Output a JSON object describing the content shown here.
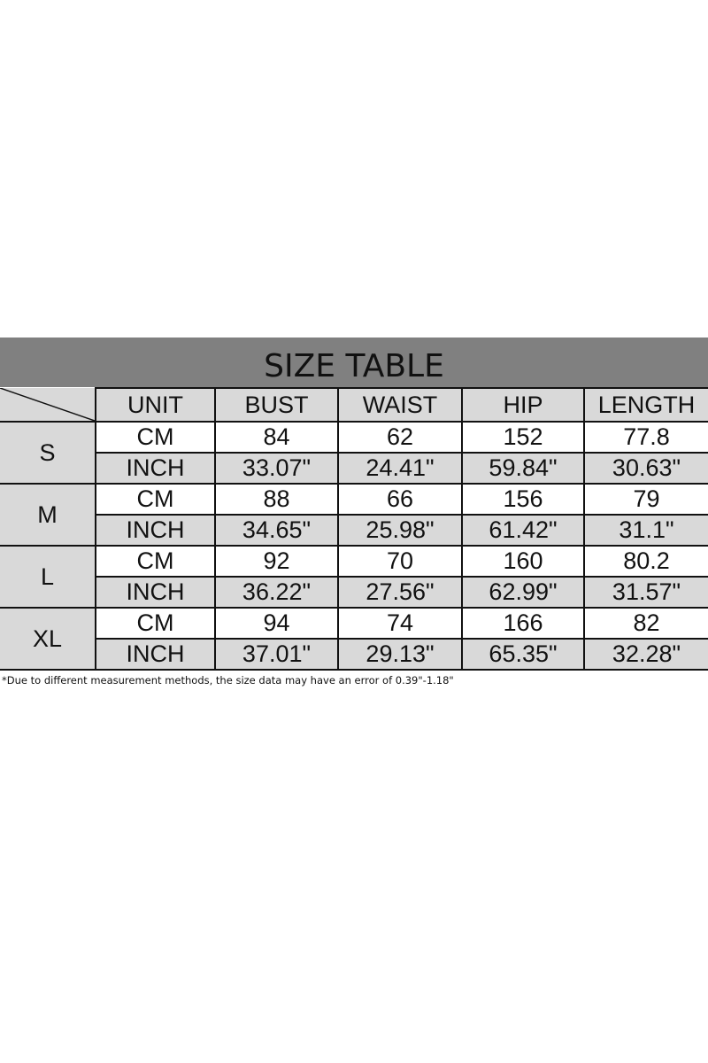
{
  "title": "SIZE TABLE",
  "columns": [
    "UNIT",
    "BUST",
    "WAIST",
    "HIP",
    "LENGTH"
  ],
  "sizes": [
    {
      "size": "S",
      "cm": [
        "CM",
        "84",
        "62",
        "152",
        "77.8"
      ],
      "inch": [
        "INCH",
        "33.07\"",
        "24.41\"",
        "59.84\"",
        "30.63\""
      ]
    },
    {
      "size": "M",
      "cm": [
        "CM",
        "88",
        "66",
        "156",
        "79"
      ],
      "inch": [
        "INCH",
        "34.65\"",
        "25.98\"",
        "61.42\"",
        "31.1\""
      ]
    },
    {
      "size": "L",
      "cm": [
        "CM",
        "92",
        "70",
        "160",
        "80.2"
      ],
      "inch": [
        "INCH",
        "36.22\"",
        "27.56\"",
        "62.99\"",
        "31.57\""
      ]
    },
    {
      "size": "XL",
      "cm": [
        "CM",
        "94",
        "74",
        "166",
        "82"
      ],
      "inch": [
        "INCH",
        "37.01\"",
        "29.13\"",
        "65.35\"",
        "32.28\""
      ]
    }
  ],
  "note": "*Due to different measurement methods, the size data may have an error of 0.39\"-1.18\"",
  "colors": {
    "title_bg": "#808080",
    "cell_gray": "#d9d9d9"
  }
}
